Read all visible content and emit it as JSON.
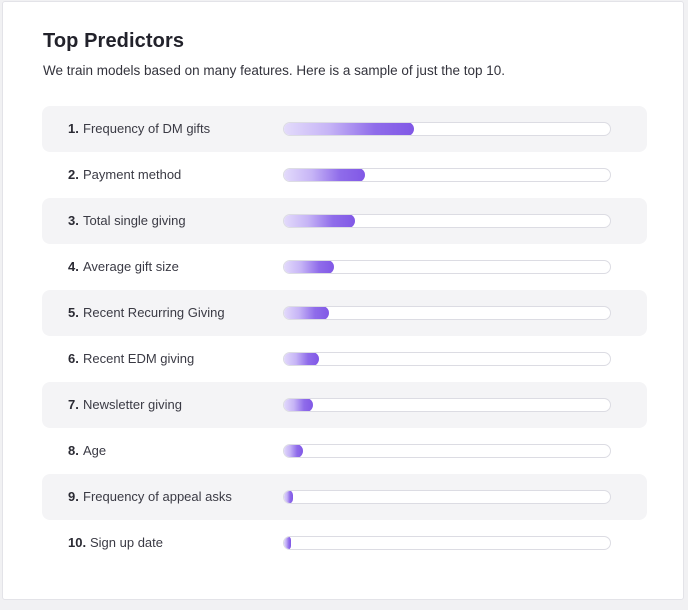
{
  "header": {
    "title": "Top Predictors",
    "subtitle": "We train models based on many features. Here is a sample of just the top 10."
  },
  "colors": {
    "bar_light": "#e4dcfb",
    "bar_dark": "#8158e6",
    "row_alt_bg": "#f4f4f6"
  },
  "predictors": [
    {
      "rank": "1.",
      "label": "Frequency of DM gifts",
      "importance": 0.4
    },
    {
      "rank": "2.",
      "label": "Payment method",
      "importance": 0.25
    },
    {
      "rank": "3.",
      "label": "Total single giving",
      "importance": 0.22
    },
    {
      "rank": "4.",
      "label": "Average gift size",
      "importance": 0.155
    },
    {
      "rank": "5.",
      "label": "Recent Recurring Giving",
      "importance": 0.14
    },
    {
      "rank": "6.",
      "label": "Recent EDM giving",
      "importance": 0.11
    },
    {
      "rank": "7.",
      "label": "Newsletter giving",
      "importance": 0.09
    },
    {
      "rank": "8.",
      "label": "Age",
      "importance": 0.06
    },
    {
      "rank": "9.",
      "label": "Frequency of appeal asks",
      "importance": 0.03
    },
    {
      "rank": "10.",
      "label": "Sign up date",
      "importance": 0.02
    }
  ]
}
